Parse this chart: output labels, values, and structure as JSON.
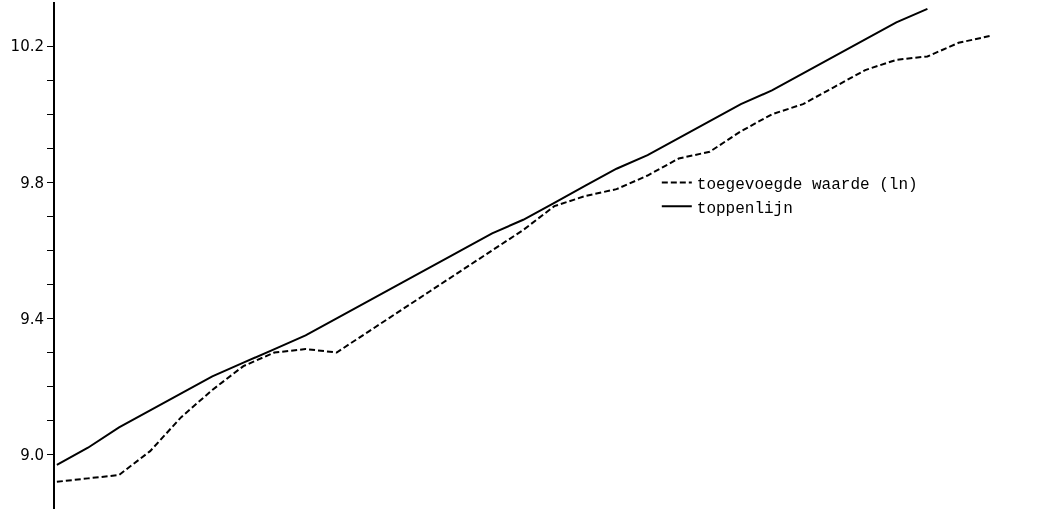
{
  "chart_data": {
    "type": "line",
    "categories": [
      null,
      null,
      null,
      null,
      null,
      null,
      null,
      null,
      null,
      null,
      null,
      null,
      null,
      null,
      null,
      null,
      null,
      null,
      null,
      null,
      null,
      null,
      null,
      null,
      null,
      null,
      null,
      null,
      null,
      null,
      null
    ],
    "series": [
      {
        "name": "toegevoegde waarde (ln)",
        "color": "#000000",
        "line_style": "dashed",
        "values": [
          8.92,
          8.93,
          8.94,
          9.01,
          9.11,
          9.19,
          9.26,
          9.3,
          9.31,
          9.3,
          9.36,
          9.42,
          9.48,
          9.54,
          9.6,
          9.66,
          9.73,
          9.76,
          9.78,
          9.82,
          9.87,
          9.89,
          9.95,
          10.0,
          10.03,
          10.08,
          10.13,
          10.16,
          10.17,
          10.21,
          10.23
        ]
      },
      {
        "name": "toppenlijn",
        "color": "#000000",
        "line_style": "solid",
        "values": [
          8.97,
          9.02,
          9.08,
          9.13,
          9.18,
          9.23,
          9.27,
          9.31,
          9.35,
          9.4,
          9.45,
          9.5,
          9.55,
          9.6,
          9.65,
          9.69,
          9.74,
          9.79,
          9.84,
          9.88,
          9.93,
          9.98,
          10.03,
          10.07,
          10.12,
          10.17,
          10.22,
          10.27,
          10.31,
          null,
          null
        ]
      }
    ],
    "ylim": [
      8.84,
      10.33
    ],
    "yticks": [
      {
        "value": 9.0,
        "label": "9.0"
      },
      {
        "value": 9.1,
        "label": null
      },
      {
        "value": 9.2,
        "label": null
      },
      {
        "value": 9.3,
        "label": null
      },
      {
        "value": 9.4,
        "label": "9.4"
      },
      {
        "value": 9.5,
        "label": null
      },
      {
        "value": 9.6,
        "label": null
      },
      {
        "value": 9.7,
        "label": null
      },
      {
        "value": 9.8,
        "label": "9.8"
      },
      {
        "value": 9.9,
        "label": null
      },
      {
        "value": 10.0,
        "label": null
      },
      {
        "value": 10.1,
        "label": null
      },
      {
        "value": 10.2,
        "label": "10.2"
      }
    ],
    "tick_labels": "y",
    "legend": "right",
    "marker": "none"
  }
}
